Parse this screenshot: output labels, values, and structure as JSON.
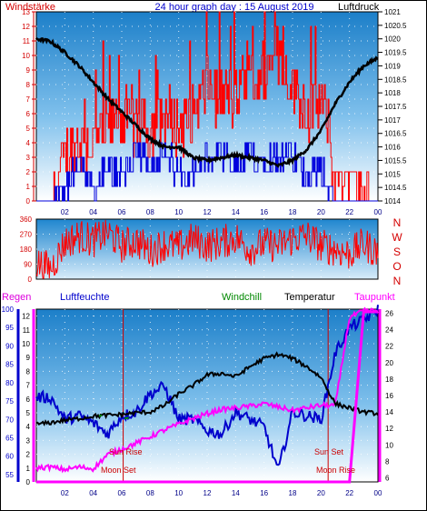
{
  "header": {
    "left_label": "Windstärke",
    "title": "24 hour graph day : 15 August 2019",
    "right_label": "Luftdruck"
  },
  "x_ticks": [
    "02",
    "04",
    "06",
    "08",
    "10",
    "12",
    "14",
    "16",
    "18",
    "20",
    "22",
    "00"
  ],
  "panel1": {
    "wind_ticks": [
      "0",
      "1",
      "2",
      "3",
      "4",
      "5",
      "6",
      "7",
      "8",
      "9",
      "10",
      "11",
      "12",
      "13"
    ],
    "pressure_ticks": [
      "1014",
      "1014.5",
      "1015",
      "1015.5",
      "1016",
      "1016.5",
      "1017",
      "1017.5",
      "1018",
      "1018.5",
      "1019",
      "1019.5",
      "1020",
      "1020.5",
      "1021"
    ]
  },
  "panel2": {
    "dir_ticks": [
      "0",
      "90",
      "180",
      "270",
      "360"
    ],
    "compass": [
      "N",
      "W",
      "S",
      "O",
      "N"
    ]
  },
  "panel3": {
    "legend": {
      "rain": "Regen",
      "humidity": "Luftfeuchte",
      "windchill": "Windchill",
      "temp": "Temperatur",
      "dewpoint": "Taupunkt"
    },
    "humidity_ticks": [
      "55",
      "60",
      "65",
      "70",
      "75",
      "80",
      "85",
      "90",
      "95",
      "100"
    ],
    "rain_ticks": [
      "0",
      "1",
      "2",
      "3",
      "4",
      "5",
      "6",
      "7",
      "8",
      "9",
      "10",
      "11",
      "12"
    ],
    "temp_ticks": [
      "6",
      "8",
      "10",
      "12",
      "14",
      "16",
      "18",
      "20",
      "22",
      "24",
      "26"
    ],
    "annotations": {
      "sun_rise": "Sun Rise",
      "moon_set": "Moon Set",
      "sun_set": "Sun Set",
      "moon_rise": "Moon Rise"
    }
  },
  "colors": {
    "wind_avg": "#0000dd",
    "wind_gust": "#ff0000",
    "pressure": "#000000",
    "humidity": "#0000cc",
    "windchill": "#008800",
    "temp": "#000000",
    "dewpoint": "#ff00ff",
    "rain": "#ff00ff",
    "axis_red": "#d40000"
  },
  "chart_data": [
    {
      "type": "line",
      "panel": "wind_pressure",
      "xlim": [
        0,
        24
      ],
      "ylim_left": [
        0,
        13
      ],
      "ylim_right": [
        1014,
        1021
      ],
      "series": [
        {
          "name": "Luftdruck",
          "x": [
            0,
            1,
            2,
            3,
            4,
            5,
            6,
            7,
            8,
            9,
            10,
            11,
            12,
            13,
            14,
            15,
            16,
            17,
            18,
            19,
            20,
            21,
            22,
            23,
            24
          ],
          "values": [
            1020.0,
            1019.9,
            1019.5,
            1019.0,
            1018.4,
            1017.8,
            1017.3,
            1016.8,
            1016.3,
            1016.0,
            1016.0,
            1015.6,
            1015.5,
            1015.6,
            1015.7,
            1015.6,
            1015.5,
            1015.3,
            1015.5,
            1015.9,
            1016.6,
            1017.6,
            1018.4,
            1019.0,
            1019.3
          ]
        },
        {
          "name": "Windstärke",
          "x": [
            0,
            1,
            2,
            3,
            4,
            5,
            6,
            7,
            8,
            9,
            10,
            11,
            12,
            13,
            14,
            15,
            16,
            17,
            18,
            19,
            20,
            21,
            22,
            23,
            24
          ],
          "values": [
            0,
            0,
            1,
            2,
            1,
            2,
            2,
            3,
            3,
            3,
            2,
            2,
            3,
            3,
            2,
            3,
            3,
            3,
            3,
            2,
            2,
            0,
            0,
            0,
            0
          ],
          "gust": [
            0,
            0,
            3,
            4,
            4,
            5,
            6,
            5,
            5,
            6,
            5,
            6,
            8,
            7,
            7,
            8,
            9,
            10,
            8,
            6,
            7,
            2,
            2,
            0,
            0
          ]
        }
      ]
    },
    {
      "type": "scatter",
      "panel": "wind_direction",
      "xlim": [
        0,
        24
      ],
      "ylim": [
        0,
        360
      ],
      "series": [
        {
          "x": [
            0,
            1,
            2,
            3,
            4,
            5,
            6,
            7,
            8,
            9,
            10,
            11,
            12,
            13,
            14,
            15,
            16,
            17,
            18,
            19,
            20,
            21,
            22,
            23,
            24
          ],
          "values": [
            100,
            60,
            220,
            260,
            230,
            280,
            200,
            230,
            170,
            210,
            190,
            240,
            200,
            220,
            250,
            180,
            210,
            200,
            240,
            260,
            200,
            180,
            150,
            210,
            160
          ]
        }
      ]
    },
    {
      "type": "line",
      "panel": "humidity_temperature",
      "xlim": [
        0,
        24
      ],
      "ylim_left": [
        53,
        100
      ],
      "ylim_rain": [
        0,
        12.5
      ],
      "ylim_temp": [
        5.5,
        26.5
      ],
      "series": [
        {
          "name": "Luftfeuchte",
          "x": [
            0,
            1,
            2,
            3,
            4,
            5,
            6,
            7,
            8,
            9,
            10,
            11,
            12,
            13,
            14,
            15,
            16,
            17,
            18,
            19,
            20,
            21,
            22,
            23,
            24
          ],
          "values": [
            76,
            76,
            70,
            71,
            69,
            66,
            71,
            72,
            77,
            79,
            70,
            70,
            67,
            66,
            72,
            70,
            68,
            56,
            72,
            71,
            70,
            88,
            95,
            97,
            100
          ]
        },
        {
          "name": "Temperatur",
          "x": [
            0,
            1,
            2,
            3,
            4,
            5,
            6,
            7,
            8,
            9,
            10,
            11,
            12,
            13,
            14,
            15,
            16,
            17,
            18,
            19,
            20,
            21,
            22,
            23,
            24
          ],
          "values": [
            12.5,
            12.7,
            13.0,
            13.2,
            13.5,
            13.6,
            13.7,
            13.9,
            14.0,
            14.8,
            16.2,
            17.2,
            18.5,
            18.7,
            18.3,
            19.5,
            20.5,
            21.0,
            20.5,
            19.5,
            18.2,
            15.0,
            14.5,
            14.0,
            13.8
          ]
        },
        {
          "name": "Windchill",
          "x": [
            4.4,
            4.6,
            6.2,
            6.5
          ],
          "values": [
            13.5,
            13.6,
            13.2,
            13.3
          ]
        },
        {
          "name": "Taupunkt",
          "x": [
            0,
            1,
            2,
            3,
            4,
            5,
            6,
            7,
            8,
            9,
            10,
            11,
            12,
            13,
            14,
            15,
            16,
            17,
            18,
            19,
            20,
            21,
            22,
            23,
            24
          ],
          "values": [
            7.2,
            7.3,
            7.0,
            7.3,
            7.1,
            8.8,
            9.5,
            10.2,
            11.0,
            11.8,
            12.5,
            13.2,
            13.8,
            14.3,
            14.5,
            14.7,
            15.0,
            14.6,
            14.2,
            14.5,
            14.8,
            14.8,
            25.5,
            26.3,
            26.3
          ]
        },
        {
          "name": "Regen",
          "x": [
            0,
            20.5,
            21,
            22,
            23,
            24
          ],
          "values": [
            0,
            0,
            0,
            0,
            12.3,
            12.3
          ]
        }
      ]
    }
  ]
}
